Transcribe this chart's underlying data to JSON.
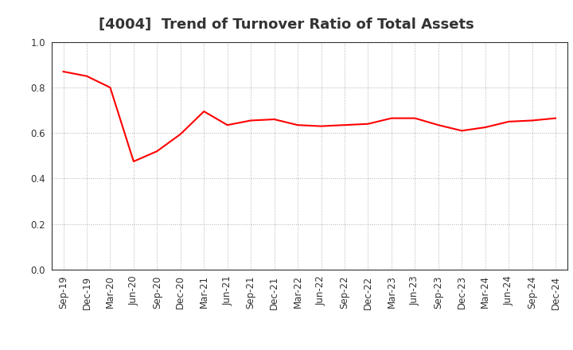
{
  "title": "[4004]  Trend of Turnover Ratio of Total Assets",
  "x_labels": [
    "Sep-19",
    "Dec-19",
    "Mar-20",
    "Jun-20",
    "Sep-20",
    "Dec-20",
    "Mar-21",
    "Jun-21",
    "Sep-21",
    "Dec-21",
    "Mar-22",
    "Jun-22",
    "Sep-22",
    "Dec-22",
    "Mar-23",
    "Jun-23",
    "Sep-23",
    "Dec-23",
    "Mar-24",
    "Jun-24",
    "Sep-24",
    "Dec-24"
  ],
  "y_values": [
    0.87,
    0.85,
    0.8,
    0.475,
    0.52,
    0.595,
    0.695,
    0.635,
    0.655,
    0.66,
    0.635,
    0.63,
    0.635,
    0.64,
    0.665,
    0.665,
    0.635,
    0.61,
    0.625,
    0.65,
    0.655,
    0.665
  ],
  "line_color": "#FF0000",
  "line_width": 1.5,
  "ylim": [
    0.0,
    1.0
  ],
  "yticks": [
    0.0,
    0.2,
    0.4,
    0.6,
    0.8,
    1.0
  ],
  "background_color": "#FFFFFF",
  "grid_color": "#999999",
  "title_fontsize": 13,
  "title_color": "#333333",
  "tick_fontsize": 8.5,
  "tick_color": "#333333"
}
